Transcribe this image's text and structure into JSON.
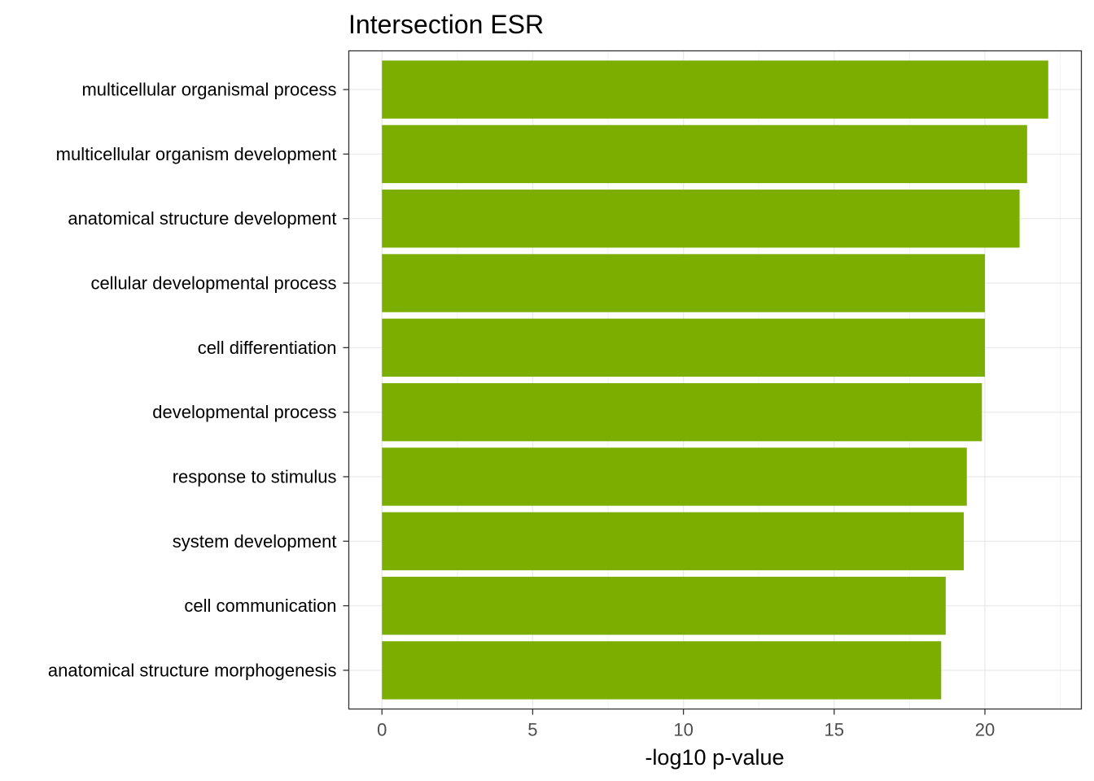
{
  "chart_data": {
    "type": "bar",
    "orientation": "horizontal",
    "title": "Intersection ESR",
    "xlabel": "-log10 p-value",
    "ylabel": "",
    "xlim": [
      -1.1,
      23.2
    ],
    "x_ticks": [
      0,
      5,
      10,
      15,
      20
    ],
    "grid": true,
    "bar_color": "#7CAE00",
    "categories": [
      "multicellular organismal process",
      "multicellular organism development",
      "anatomical structure development",
      "cellular developmental process",
      "cell differentiation",
      "developmental process",
      "response to stimulus",
      "system development",
      "cell communication",
      "anatomical structure morphogenesis"
    ],
    "values": [
      22.1,
      21.4,
      21.15,
      20.0,
      20.0,
      19.9,
      19.4,
      19.3,
      18.7,
      18.55
    ]
  }
}
